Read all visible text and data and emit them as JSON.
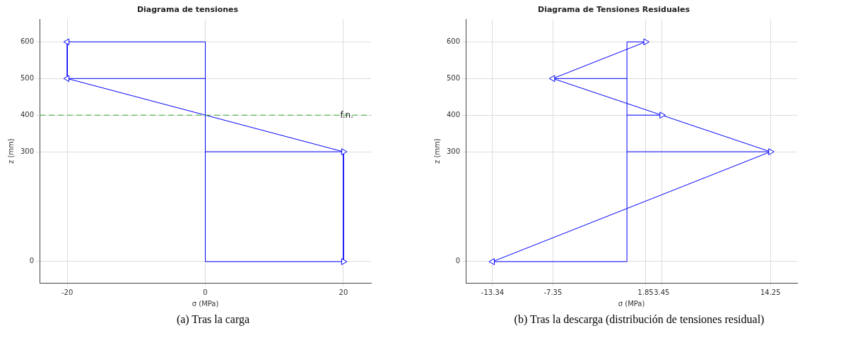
{
  "chart_data": [
    {
      "type": "line",
      "title": "Diagrama de tensiones",
      "xlabel": "σ (MPa)",
      "ylabel": "z (mm)",
      "xlim": [
        -24,
        24
      ],
      "xticks": [
        -20,
        0,
        20
      ],
      "ylim": [
        -58,
        662
      ],
      "yticks": [
        0,
        300,
        400,
        500,
        600
      ],
      "grid": true,
      "legend": false,
      "marker": "none",
      "annotations": [
        "(a) Tras la carga"
      ],
      "ref_lines": [
        {
          "axis": "y",
          "value": 400,
          "label": "f.n.",
          "color": "#33aa33",
          "line_style": "dashed"
        }
      ],
      "series": [
        {
          "color": "#0000ff",
          "marker": "triangle",
          "x": [
            -20,
            -20,
            20,
            20
          ],
          "values": [
            600,
            500,
            300,
            0
          ]
        },
        {
          "color": "#0000ff",
          "x": [
            0,
            0
          ],
          "values": [
            0,
            600
          ]
        },
        {
          "color": "#0000ff",
          "x": [
            0,
            -20
          ],
          "values": [
            600,
            600
          ]
        },
        {
          "color": "#0000ff",
          "x": [
            0,
            -20
          ],
          "values": [
            500,
            500
          ]
        },
        {
          "color": "#0000ff",
          "x": [
            0,
            20
          ],
          "values": [
            300,
            300
          ]
        },
        {
          "color": "#0000ff",
          "x": [
            0,
            20
          ],
          "values": [
            0,
            0
          ]
        }
      ]
    },
    {
      "type": "line",
      "title": "Diagrama de Tensiones Residuales",
      "xlabel": "σ (MPa)",
      "ylabel": "z (mm)",
      "xlim": [
        -16,
        16.9
      ],
      "xticks": [
        -13.34,
        -7.35,
        1.85,
        3.45,
        14.25
      ],
      "ylim": [
        -58,
        662
      ],
      "yticks": [
        0,
        300,
        400,
        500,
        600
      ],
      "grid": true,
      "legend": false,
      "marker": "none",
      "annotations": [
        "(b) Tras la descarga (distribución de tensiones residual)"
      ],
      "series": [
        {
          "color": "#0000ff",
          "marker": "triangle",
          "x": [
            1.85,
            -7.35,
            3.45,
            14.25,
            -13.34
          ],
          "values": [
            600,
            500,
            400,
            300,
            0
          ]
        },
        {
          "color": "#0000ff",
          "x": [
            0,
            0
          ],
          "values": [
            0,
            600
          ]
        },
        {
          "color": "#0000ff",
          "x": [
            0,
            1.85
          ],
          "values": [
            600,
            600
          ]
        },
        {
          "color": "#0000ff",
          "x": [
            0,
            -7.35
          ],
          "values": [
            500,
            500
          ]
        },
        {
          "color": "#0000ff",
          "x": [
            0,
            3.45
          ],
          "values": [
            400,
            400
          ]
        },
        {
          "color": "#0000ff",
          "x": [
            0,
            14.25
          ],
          "values": [
            300,
            300
          ]
        },
        {
          "color": "#0000ff",
          "x": [
            0,
            -13.34
          ],
          "values": [
            0,
            0
          ]
        }
      ]
    }
  ]
}
